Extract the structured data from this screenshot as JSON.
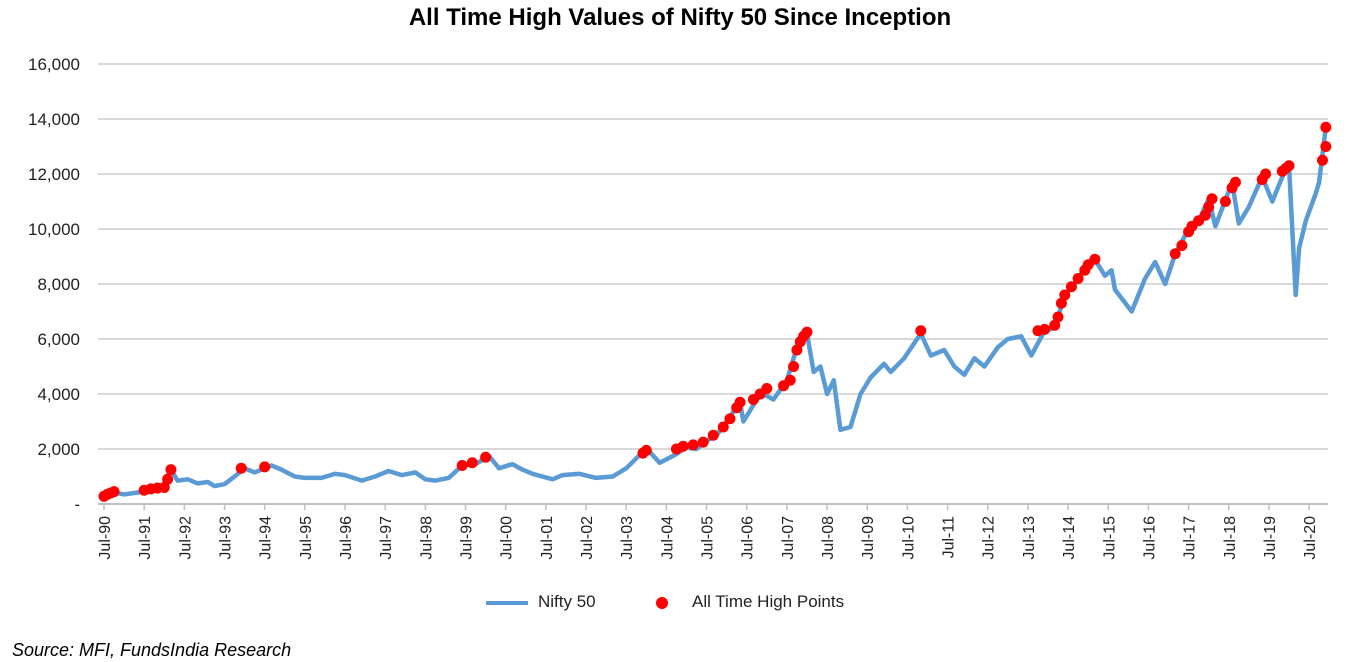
{
  "chart_data": {
    "type": "line",
    "title": "All Time High Values of Nifty 50 Since Inception",
    "xlabel": "",
    "ylabel": "",
    "ylim": [
      0,
      16000
    ],
    "yticks": [
      0,
      2000,
      4000,
      6000,
      8000,
      10000,
      12000,
      14000,
      16000
    ],
    "ytick_labels": [
      "-",
      "2,000",
      "4,000",
      "6,000",
      "8,000",
      "10,000",
      "12,000",
      "14,000",
      "16,000"
    ],
    "xtick_labels": [
      "Jul-90",
      "Jul-91",
      "Jul-92",
      "Jul-93",
      "Jul-94",
      "Jul-95",
      "Jul-96",
      "Jul-97",
      "Jul-98",
      "Jul-99",
      "Jul-00",
      "Jul-01",
      "Jul-02",
      "Jul-03",
      "Jul-04",
      "Jul-05",
      "Jul-06",
      "Jul-07",
      "Jul-08",
      "Jul-09",
      "Jul-10",
      "Jul-11",
      "Jul-12",
      "Jul-13",
      "Jul-14",
      "Jul-15",
      "Jul-16",
      "Jul-17",
      "Jul-18",
      "Jul-19",
      "Jul-20"
    ],
    "grid": true,
    "legend_position": "bottom",
    "series": [
      {
        "name": "Nifty 50",
        "type": "line",
        "color": "#5b9bd5",
        "points": [
          [
            "1990-07",
            280
          ],
          [
            "1990-10",
            420
          ],
          [
            "1991-01",
            350
          ],
          [
            "1991-04",
            400
          ],
          [
            "1991-07",
            450
          ],
          [
            "1991-10",
            550
          ],
          [
            "1992-01",
            600
          ],
          [
            "1992-03",
            1250
          ],
          [
            "1992-05",
            850
          ],
          [
            "1992-08",
            900
          ],
          [
            "1992-11",
            750
          ],
          [
            "1993-02",
            800
          ],
          [
            "1993-04",
            650
          ],
          [
            "1993-07",
            720
          ],
          [
            "1993-10",
            1000
          ],
          [
            "1994-01",
            1300
          ],
          [
            "1994-04",
            1150
          ],
          [
            "1994-09",
            1400
          ],
          [
            "1994-12",
            1250
          ],
          [
            "1995-04",
            1000
          ],
          [
            "1995-07",
            950
          ],
          [
            "1995-12",
            950
          ],
          [
            "1996-04",
            1100
          ],
          [
            "1996-07",
            1050
          ],
          [
            "1996-12",
            850
          ],
          [
            "1997-04",
            1000
          ],
          [
            "1997-08",
            1200
          ],
          [
            "1997-12",
            1050
          ],
          [
            "1998-04",
            1150
          ],
          [
            "1998-07",
            900
          ],
          [
            "1998-10",
            850
          ],
          [
            "1999-02",
            950
          ],
          [
            "1999-06",
            1400
          ],
          [
            "1999-10",
            1450
          ],
          [
            "2000-02",
            1750
          ],
          [
            "2000-05",
            1300
          ],
          [
            "2000-09",
            1450
          ],
          [
            "2000-12",
            1250
          ],
          [
            "2001-03",
            1100
          ],
          [
            "2001-09",
            900
          ],
          [
            "2001-12",
            1050
          ],
          [
            "2002-05",
            1100
          ],
          [
            "2002-10",
            950
          ],
          [
            "2003-03",
            1000
          ],
          [
            "2003-07",
            1300
          ],
          [
            "2003-12",
            1900
          ],
          [
            "2004-02",
            1900
          ],
          [
            "2004-05",
            1500
          ],
          [
            "2004-09",
            1750
          ],
          [
            "2005-01",
            2050
          ],
          [
            "2005-04",
            2000
          ],
          [
            "2005-07",
            2300
          ],
          [
            "2005-10",
            2500
          ],
          [
            "2006-01",
            3000
          ],
          [
            "2006-05",
            3700
          ],
          [
            "2006-06",
            3000
          ],
          [
            "2006-10",
            3800
          ],
          [
            "2006-12",
            4000
          ],
          [
            "2007-03",
            3800
          ],
          [
            "2007-07",
            4500
          ],
          [
            "2007-10",
            5700
          ],
          [
            "2008-01",
            6200
          ],
          [
            "2008-03",
            4800
          ],
          [
            "2008-05",
            5000
          ],
          [
            "2008-07",
            4000
          ],
          [
            "2008-09",
            4500
          ],
          [
            "2008-11",
            2700
          ],
          [
            "2009-02",
            2800
          ],
          [
            "2009-05",
            4000
          ],
          [
            "2009-08",
            4600
          ],
          [
            "2009-12",
            5100
          ],
          [
            "2010-02",
            4800
          ],
          [
            "2010-06",
            5300
          ],
          [
            "2010-11",
            6200
          ],
          [
            "2011-02",
            5400
          ],
          [
            "2011-06",
            5600
          ],
          [
            "2011-09",
            5000
          ],
          [
            "2011-12",
            4700
          ],
          [
            "2012-03",
            5300
          ],
          [
            "2012-06",
            5000
          ],
          [
            "2012-10",
            5700
          ],
          [
            "2013-01",
            6000
          ],
          [
            "2013-05",
            6100
          ],
          [
            "2013-08",
            5400
          ],
          [
            "2013-12",
            6300
          ],
          [
            "2014-03",
            6400
          ],
          [
            "2014-06",
            7600
          ],
          [
            "2014-09",
            8000
          ],
          [
            "2015-01",
            8800
          ],
          [
            "2015-03",
            8900
          ],
          [
            "2015-06",
            8300
          ],
          [
            "2015-08",
            8500
          ],
          [
            "2015-09",
            7800
          ],
          [
            "2016-02",
            7000
          ],
          [
            "2016-06",
            8200
          ],
          [
            "2016-09",
            8800
          ],
          [
            "2016-12",
            8000
          ],
          [
            "2017-03",
            9100
          ],
          [
            "2017-07",
            10000
          ],
          [
            "2017-10",
            10300
          ],
          [
            "2018-01",
            11100
          ],
          [
            "2018-03",
            10100
          ],
          [
            "2018-08",
            11700
          ],
          [
            "2018-10",
            10200
          ],
          [
            "2019-01",
            10800
          ],
          [
            "2019-05",
            11900
          ],
          [
            "2019-08",
            11000
          ],
          [
            "2019-12",
            12200
          ],
          [
            "2020-01",
            12300
          ],
          [
            "2020-03",
            7600
          ],
          [
            "2020-04",
            9300
          ],
          [
            "2020-06",
            10300
          ],
          [
            "2020-09",
            11300
          ],
          [
            "2020-10",
            11700
          ],
          [
            "2020-12",
            13700
          ]
        ]
      },
      {
        "name": "All Time High Points",
        "type": "scatter",
        "color": "#ff0000",
        "points": [
          [
            "1990-07",
            280
          ],
          [
            "1990-08",
            350
          ],
          [
            "1990-09",
            400
          ],
          [
            "1990-10",
            450
          ],
          [
            "1991-07",
            500
          ],
          [
            "1991-09",
            550
          ],
          [
            "1991-11",
            580
          ],
          [
            "1992-01",
            600
          ],
          [
            "1992-02",
            900
          ],
          [
            "1992-03",
            1250
          ],
          [
            "1993-12",
            1300
          ],
          [
            "1994-07",
            1350
          ],
          [
            "1999-06",
            1400
          ],
          [
            "1999-09",
            1500
          ],
          [
            "2000-01",
            1700
          ],
          [
            "2003-12",
            1850
          ],
          [
            "2004-01",
            1950
          ],
          [
            "2004-10",
            2000
          ],
          [
            "2004-12",
            2100
          ],
          [
            "2005-03",
            2150
          ],
          [
            "2005-06",
            2250
          ],
          [
            "2005-09",
            2500
          ],
          [
            "2005-12",
            2800
          ],
          [
            "2006-02",
            3100
          ],
          [
            "2006-04",
            3500
          ],
          [
            "2006-05",
            3700
          ],
          [
            "2006-09",
            3800
          ],
          [
            "2006-11",
            4000
          ],
          [
            "2007-01",
            4200
          ],
          [
            "2007-06",
            4300
          ],
          [
            "2007-08",
            4500
          ],
          [
            "2007-09",
            5000
          ],
          [
            "2007-10",
            5600
          ],
          [
            "2007-11",
            5900
          ],
          [
            "2007-12",
            6100
          ],
          [
            "2008-01",
            6250
          ],
          [
            "2010-11",
            6300
          ],
          [
            "2013-10",
            6300
          ],
          [
            "2013-12",
            6350
          ],
          [
            "2014-03",
            6500
          ],
          [
            "2014-04",
            6800
          ],
          [
            "2014-05",
            7300
          ],
          [
            "2014-06",
            7600
          ],
          [
            "2014-08",
            7900
          ],
          [
            "2014-10",
            8200
          ],
          [
            "2014-12",
            8500
          ],
          [
            "2015-01",
            8700
          ],
          [
            "2015-03",
            8900
          ],
          [
            "2017-03",
            9100
          ],
          [
            "2017-05",
            9400
          ],
          [
            "2017-07",
            9900
          ],
          [
            "2017-08",
            10100
          ],
          [
            "2017-10",
            10300
          ],
          [
            "2017-12",
            10500
          ],
          [
            "2018-01",
            10800
          ],
          [
            "2018-02",
            11100
          ],
          [
            "2018-06",
            11000
          ],
          [
            "2018-08",
            11500
          ],
          [
            "2018-09",
            11700
          ],
          [
            "2019-05",
            11800
          ],
          [
            "2019-06",
            12000
          ],
          [
            "2019-11",
            12100
          ],
          [
            "2019-12",
            12200
          ],
          [
            "2020-01",
            12300
          ],
          [
            "2020-11",
            12500
          ],
          [
            "2020-12",
            13000
          ],
          [
            "2020-12",
            13700
          ]
        ]
      }
    ]
  },
  "legend": {
    "line_label": "Nifty 50",
    "dot_label": "All Time High Points"
  },
  "source": "Source: MFI, FundsIndia Research"
}
